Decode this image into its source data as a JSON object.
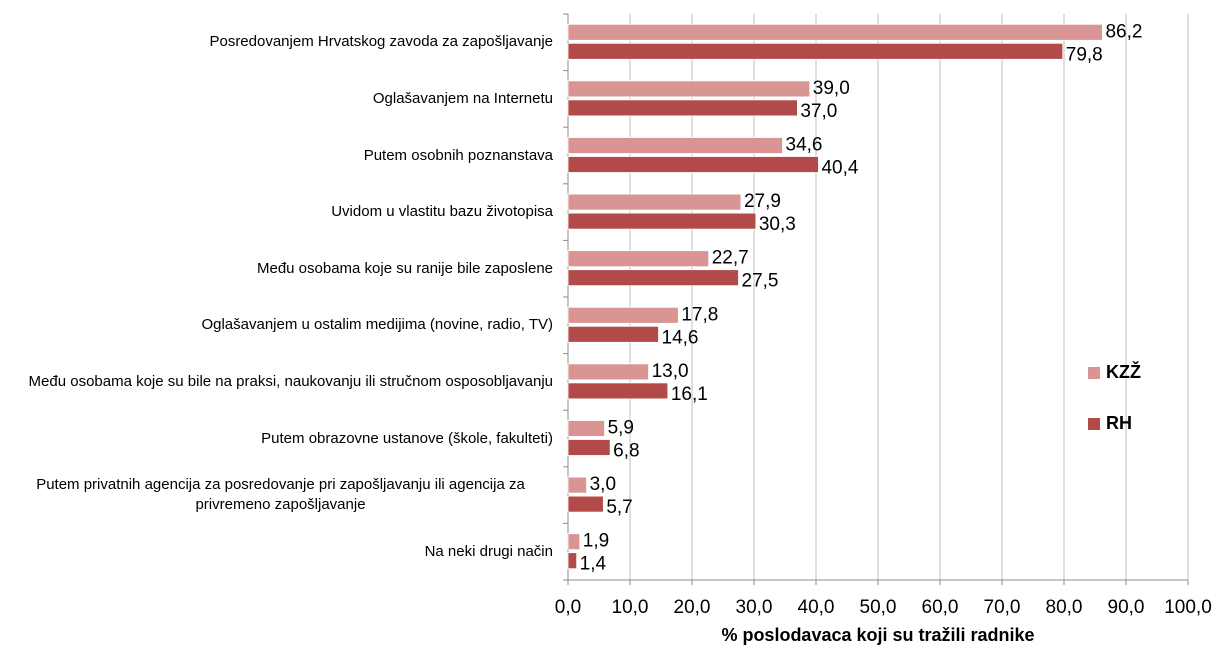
{
  "chart_data": {
    "type": "bar",
    "orientation": "horizontal",
    "x_label": "% poslodavaca koji su tražili radnike",
    "categories": [
      "Posredovanjem Hrvatskog zavoda za zapošljavanje",
      "Oglašavanjem na Internetu",
      "Putem osobnih poznanstava",
      "Uvidom u vlastitu bazu životopisa",
      "Među osobama koje su ranije bile zaposlene",
      "Oglašavanjem u ostalim medijima (novine, radio, TV)",
      "Među osobama koje su bile na praksi, naukovanju ili stručnom osposobljavanju",
      "Putem obrazovne ustanove (škole, fakulteti)",
      "Putem privatnih agencija za posredovanje pri zapošljavanju ili agencija za privremeno zapošljavanje",
      "Na neki drugi način"
    ],
    "series": [
      {
        "name": "KZŽ",
        "color": "#d99594",
        "values": [
          86.2,
          39.0,
          34.6,
          27.9,
          22.7,
          17.8,
          13.0,
          5.9,
          3.0,
          1.9
        ],
        "value_labels": [
          "86,2",
          "39,0",
          "34,6",
          "27,9",
          "22,7",
          "17,8",
          "13,0",
          "5,9",
          "3,0",
          "1,9"
        ]
      },
      {
        "name": "RH",
        "color": "#b24a4a",
        "values": [
          79.8,
          37.0,
          40.4,
          30.3,
          27.5,
          14.6,
          16.1,
          6.8,
          5.7,
          1.4
        ],
        "value_labels": [
          "79,8",
          "37,0",
          "40,4",
          "30,3",
          "27,5",
          "14,6",
          "16,1",
          "6,8",
          "5,7",
          "1,4"
        ]
      }
    ],
    "xlim": [
      0,
      100
    ],
    "xticks": [
      {
        "value": 0,
        "label": "0,0"
      },
      {
        "value": 10,
        "label": "10,0"
      },
      {
        "value": 20,
        "label": "20,0"
      },
      {
        "value": 30,
        "label": "30,0"
      },
      {
        "value": 40,
        "label": "40,0"
      },
      {
        "value": 50,
        "label": "50,0"
      },
      {
        "value": 60,
        "label": "60,0"
      },
      {
        "value": 70,
        "label": "70,0"
      },
      {
        "value": 80,
        "label": "80,0"
      },
      {
        "value": 90,
        "label": "90,0"
      },
      {
        "value": 100,
        "label": "100,0"
      }
    ],
    "grid": true,
    "legend": "right"
  }
}
